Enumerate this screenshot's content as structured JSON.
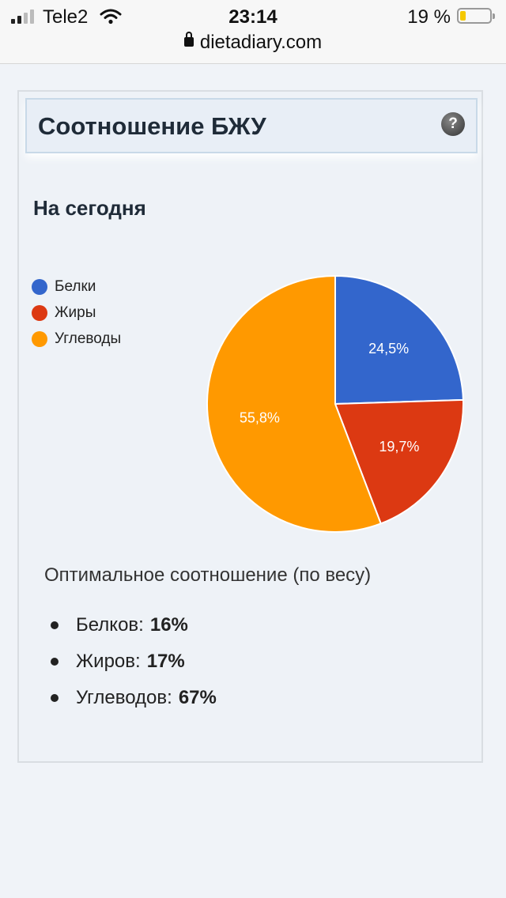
{
  "status_bar": {
    "carrier": "Tele2",
    "time": "23:14",
    "battery_percent": "19 %",
    "battery_level": 0.19,
    "url": "dietadiary.com"
  },
  "panel": {
    "title": "Соотношение БЖУ",
    "help_icon": "question-icon",
    "subtitle": "На сегодня"
  },
  "legend": [
    {
      "label": "Белки",
      "color": "#3366cc"
    },
    {
      "label": "Жиры",
      "color": "#dc3912"
    },
    {
      "label": "Углеводы",
      "color": "#ff9900"
    }
  ],
  "chart_data": {
    "type": "pie",
    "title": "",
    "categories": [
      "Белки",
      "Жиры",
      "Углеводы"
    ],
    "values": [
      24.5,
      19.7,
      55.8
    ],
    "labels": [
      "24,5%",
      "19,7%",
      "55,8%"
    ],
    "colors": [
      "#3366cc",
      "#dc3912",
      "#ff9900"
    ],
    "legend_position": "left"
  },
  "optimal": {
    "title": "Оптимальное соотношение (по весу)",
    "items": [
      {
        "label": "Белков:",
        "value": "16%"
      },
      {
        "label": "Жиров:",
        "value": "17%"
      },
      {
        "label": "Углеводов:",
        "value": "67%"
      }
    ]
  }
}
